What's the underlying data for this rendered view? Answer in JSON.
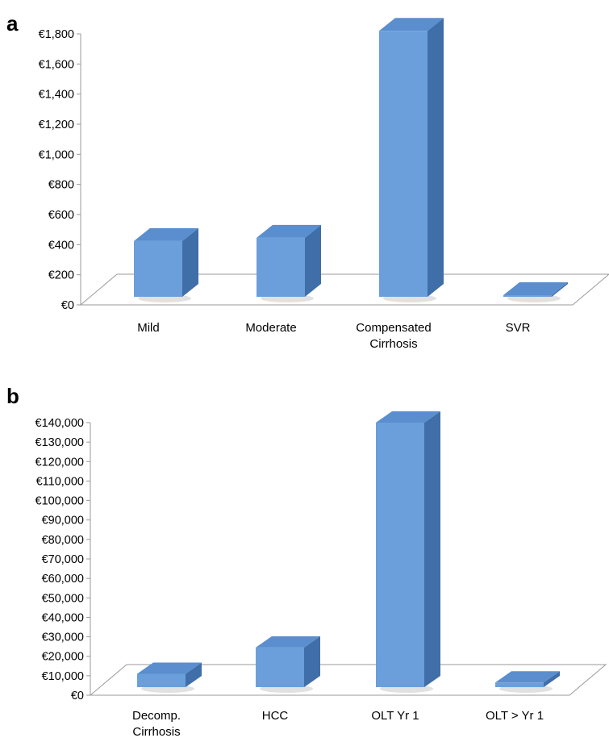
{
  "chart_data": [
    {
      "panel": "a",
      "type": "bar",
      "categories": [
        "Mild",
        "Moderate",
        "Compensated\nCirrhosis",
        "SVR"
      ],
      "values": [
        424,
        445,
        1820,
        51
      ],
      "ylim": [
        0,
        1800
      ],
      "ytick_labels": [
        "€0",
        "€200",
        "€400",
        "€600",
        "€800",
        "€1,000",
        "€1,200",
        "€1,400",
        "€1,600",
        "€1,800"
      ],
      "grid": false,
      "bar_color": "#6a9fdc",
      "bar_side_color": "#3f6ea8",
      "bar_top_color": "#5a8ece",
      "style": "3d"
    },
    {
      "panel": "b",
      "type": "bar",
      "categories": [
        "Decomp.\nCirrhosis",
        "HCC",
        "OLT Yr 1",
        "OLT > Yr 1"
      ],
      "values": [
        11000,
        24500,
        140000,
        6500
      ],
      "ylim": [
        0,
        140000
      ],
      "ytick_labels": [
        "€0",
        "€10,000",
        "€20,000",
        "€30,000",
        "€40,000",
        "€50,000",
        "€60,000",
        "€70,000",
        "€80,000",
        "€90,000",
        "€100,000",
        "€110,000",
        "€120,000",
        "€130,000",
        "€140,000"
      ],
      "grid": false,
      "bar_color": "#6a9fdc",
      "bar_side_color": "#3f6ea8",
      "bar_top_color": "#5a8ece",
      "style": "3d"
    }
  ]
}
